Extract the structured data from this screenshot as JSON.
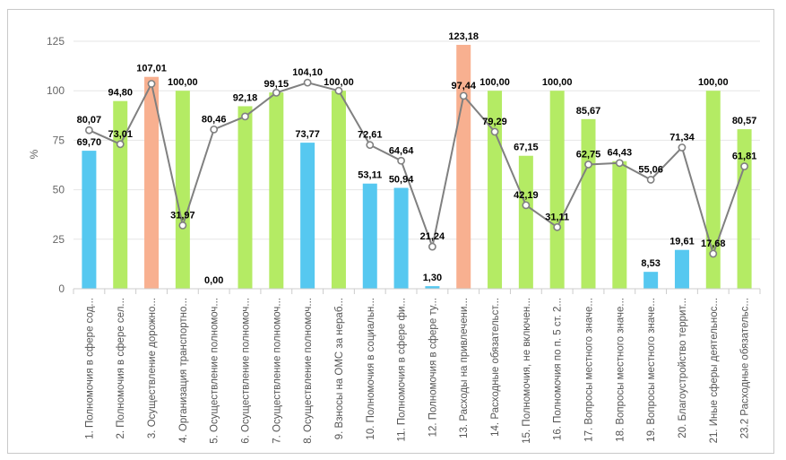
{
  "chart_data": {
    "type": "bar",
    "ylabel": "%",
    "ylim": [
      0,
      125
    ],
    "yticks": [
      0,
      25,
      50,
      75,
      100,
      125
    ],
    "grid": true,
    "categories": [
      "1. Полномочия в сфере сод...",
      "2. Полномочия в сфере сел...",
      "3. Осуществление дорожно...",
      "4. Организация транспортно...",
      "5. Осуществление полномоч...",
      "6. Осуществление полномоч...",
      "7. Осуществление полномоч...",
      "8. Осуществление полномоч...",
      "9. Взносы на ОМС за нераб...",
      "10. Полномочия в социальн...",
      "11. Полномочия в сфере фи...",
      "12. Полномочия в сфере ту...",
      "13. Расходы на привлечени...",
      "14. Расходные обязательст...",
      "15. Полномочия, не включен...",
      "16. Полномочия по п. 5 ст. 2...",
      "17. Вопросы местного значе...",
      "18. Вопросы местного значе...",
      "19. Вопросы местного значе...",
      "20. Благоустройство террит...",
      "21. Иные сферы деятельнос...",
      "23.2 Расходные обязательс..."
    ],
    "bars": {
      "values": [
        69.7,
        94.8,
        107.01,
        100.0,
        0.0,
        92.18,
        99.15,
        73.77,
        100.0,
        53.11,
        50.94,
        1.3,
        123.18,
        100.0,
        67.15,
        100.0,
        85.67,
        64.43,
        8.53,
        19.61,
        100.0,
        80.57
      ],
      "labels": [
        "69,70",
        "94,80",
        "107,01",
        "100,00",
        "0,00",
        "92,18",
        "99,15",
        "73,77",
        "100,00",
        "53,11",
        "50,94",
        "1,30",
        "123,18",
        "100,00",
        "67,15",
        "100,00",
        "85,67",
        "64,43",
        "8,53",
        "19,61",
        "100,00",
        "80,57"
      ],
      "colors": [
        "#56c8f0",
        "#b4eb64",
        "#f8b090",
        "#b4eb64",
        "#56c8f0",
        "#b4eb64",
        "#b4eb64",
        "#56c8f0",
        "#b4eb64",
        "#56c8f0",
        "#56c8f0",
        "#56c8f0",
        "#f8b090",
        "#b4eb64",
        "#b4eb64",
        "#b4eb64",
        "#b4eb64",
        "#b4eb64",
        "#56c8f0",
        "#56c8f0",
        "#b4eb64",
        "#b4eb64"
      ]
    },
    "line": {
      "values": [
        80.07,
        73.01,
        103.5,
        31.97,
        80.46,
        87.0,
        99.0,
        104.1,
        100.0,
        72.61,
        64.64,
        21.24,
        97.44,
        79.29,
        42.19,
        31.11,
        62.75,
        63.5,
        55.06,
        71.34,
        17.68,
        61.81
      ],
      "labels": [
        "80,07",
        "73,01",
        "",
        "31,97",
        "80,46",
        "",
        "",
        "104,10",
        "",
        "72,61",
        "64,64",
        "21,24",
        "97,44",
        "79,29",
        "42,19",
        "31,11",
        "62,75",
        "",
        "55,06",
        "71,34",
        "17,68",
        "61,81"
      ],
      "color": "#808080"
    },
    "colors": {
      "blue": "#56c8f0",
      "green": "#b4eb64",
      "salmon": "#f8b090",
      "line": "#808080",
      "grid": "#e6e6e6"
    }
  }
}
